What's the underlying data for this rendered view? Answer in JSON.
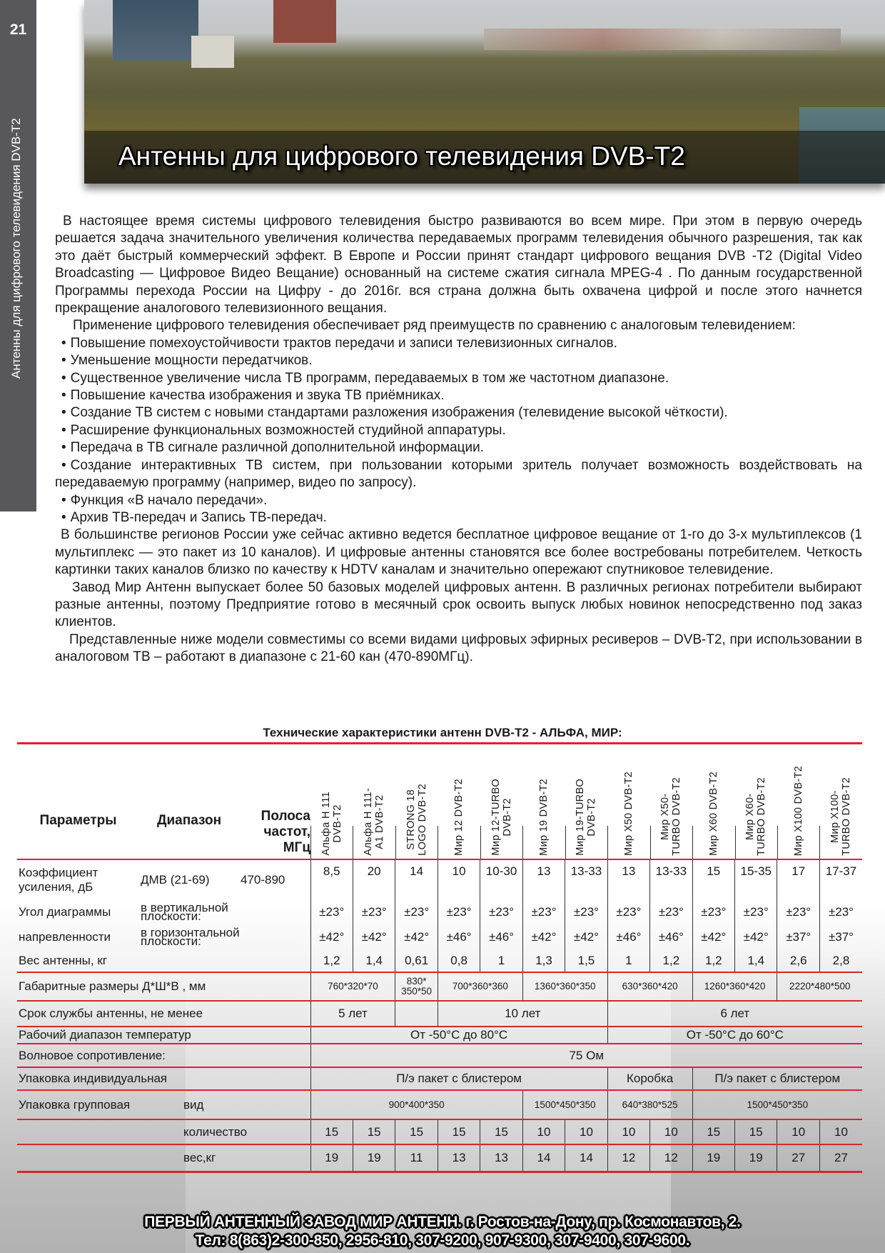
{
  "sidebar": {
    "page_number": "21",
    "section_title": "Антенны для цифрового телевидения DVB-T2"
  },
  "header": {
    "title": "Антенны для цифрового телевидения DVB-T2"
  },
  "body": {
    "intro": "В настоящее время системы цифрового телевидения быстро развиваются во всем мире. При этом в первую очередь решается задача значительного увеличения количества передаваемых программ телевидения обычного разрешения, так как это даёт быстрый коммерческий эффект. В Европе и России принят стандарт цифрового вещания  DVB -T2 (Digital Video Broadcasting — Цифровое Видео Вещание) основанный на системе сжатия сигнала  MPEG-4 . По данным государственной Программы перехода России на Цифру - до 2016г. вся страна должна быть охвачена цифрой и после этого начнется прекращение аналогового телевизионного вещания.",
    "advantages_intro": "Применение цифрового телевидения обеспечивает ряд преимуществ по сравнению с аналоговым телевидением:",
    "bullets": [
      "Повышение помехоустойчивости трактов передачи и записи телевизионных сигналов.",
      "Уменьшение мощности передатчиков.",
      "Существенное увеличение числа ТВ программ, передаваемых в том же частотном диапазоне.",
      "Повышение качества изображения и звука ТВ приёмниках.",
      "Создание ТВ систем с новыми стандартами разложения изображения (телевидение высокой чёткости).",
      "Расширение функциональных возможностей студийной аппаратуры.",
      "Передача в ТВ сигнале различной дополнительной информации.",
      "Создание интерактивных ТВ систем, при пользовании которыми зритель получает возможность воздействовать на передаваемую программу (например, видео по запросу).",
      "Функция «В начало передачи».",
      "Архив ТВ-передач и Запись ТВ-передач."
    ],
    "regions": "В большинстве регионов России уже сейчас активно ведется бесплатное цифровое вещание от 1-го до 3-х мультиплексов (1 мультиплекс — это пакет из 10 каналов). И цифровые антенны становятся все более востребованы потребителем. Четкость картинки таких каналов близко по качеству к HDTV каналам и значительно опережают спутниковое телевидение.",
    "factory": "Завод Мир Антенн выпускает более 50 базовых моделей цифровых антенн. В различных регионах потребители выбирают разные антенны, поэтому Предприятие готово в месячный срок освоить выпуск любых новинок непосредственно под заказ клиентов.",
    "compat": "Представленные ниже модели совместимы со всеми видами цифровых эфирных ресиверов – DVB-T2, при использовании в аналоговом ТВ – работают в диапазоне с 21-60 кан (470-890МГц)."
  },
  "table": {
    "title": "Технические характеристики антенн DVB-T2 - АЛЬФА, МИР:",
    "headers": {
      "params": "Параметры",
      "range": "Диапазон",
      "band": "Полоса частот, МГц"
    },
    "models": [
      [
        "Альфа H 111",
        "DVB-T2"
      ],
      [
        "Альфа H 111-",
        "A1 DVB-T2"
      ],
      [
        "STRONG 18",
        "LOGO DVB-T2"
      ],
      [
        "Мир 12 DVB-T2"
      ],
      [
        "Мир 12-TURBO",
        "DVB-T2"
      ],
      [
        "Мир 19 DVB-T2"
      ],
      [
        "Мир 19-TURBO",
        "DVB-T2"
      ],
      [
        "Мир X50 DVB-T2"
      ],
      [
        "Мир X50-",
        "TURBO DVB-T2"
      ],
      [
        "Мир X60 DVB-T2"
      ],
      [
        "Мир X60-",
        "TURBO DVB-T2"
      ],
      [
        "Мир X100 DVB-T2"
      ],
      [
        "Мир X100-",
        "TURBO DVB-T2"
      ]
    ],
    "gain": {
      "label": "Коэффициент усиления, дБ",
      "range": "ДМВ (21-69)",
      "band": "470-890",
      "values": [
        "8,5",
        "20",
        "14",
        "10",
        "10-30",
        "13",
        "13-33",
        "13",
        "13-33",
        "15",
        "15-35",
        "17",
        "17-37"
      ]
    },
    "angle": {
      "label_1": "Угол диаграммы",
      "label_2": "напревленности",
      "vertical_label": "в вертикальной плоскости:",
      "horizontal_label": "в горизонтальной плоскости:",
      "vertical": [
        "±23°",
        "±23°",
        "±23°",
        "±23°",
        "±23°",
        "±23°",
        "±23°",
        "±23°",
        "±23°",
        "±23°",
        "±23°",
        "±23°",
        "±23°"
      ],
      "horizontal": [
        "±42°",
        "±42°",
        "±42°",
        "±46°",
        "±46°",
        "±42°",
        "±42°",
        "±46°",
        "±46°",
        "±42°",
        "±42°",
        "±37°",
        "±37°"
      ]
    },
    "weight": {
      "label": "Вес антенны, кг",
      "values": [
        "1,2",
        "1,4",
        "0,61",
        "0,8",
        "1",
        "1,3",
        "1,5",
        "1",
        "1,2",
        "1,2",
        "1,4",
        "2,6",
        "2,8"
      ]
    },
    "merged_rows": [
      {
        "label": "Габаритные размеры Д*Ш*В , мм",
        "cells": [
          {
            "v": "760*320*70",
            "span": 2
          },
          {
            "v": "830* 350*50",
            "span": 1
          },
          {
            "v": "700*360*360",
            "span": 2
          },
          {
            "v": "1360*360*350",
            "span": 2
          },
          {
            "v": "630*360*420",
            "span": 2
          },
          {
            "v": "1260*360*420",
            "span": 2
          },
          {
            "v": "2220*480*500",
            "span": 2
          }
        ]
      },
      {
        "label": "Срок службы антенны, не менее",
        "cells": [
          {
            "v": "5 лет",
            "span": 2
          },
          {
            "v": "",
            "span": 1
          },
          {
            "v": "10 лет",
            "span": 4
          },
          {
            "v": "6 лет",
            "span": 6
          }
        ]
      },
      {
        "label": "Рабочий диапазон температур",
        "cells": [
          {
            "v": "От -50°С до 80°С",
            "span": 7
          },
          {
            "v": "От -50°С до 60°С",
            "span": 6
          }
        ]
      },
      {
        "label": "Волновое сопротивление:",
        "cells": [
          {
            "v": "75 Ом",
            "span": 13
          }
        ]
      },
      {
        "label": "Упаковка индивидуальная",
        "cells": [
          {
            "v": "П/э пакет с блистером",
            "span": 7
          },
          {
            "v": "Коробка",
            "span": 2
          },
          {
            "v": "П/э пакет с блистером",
            "span": 4
          }
        ]
      }
    ],
    "group_pack": {
      "label": "Упаковка групповая",
      "type_label": "вид",
      "type_cells": [
        {
          "v": "900*400*350",
          "span": 5
        },
        {
          "v": "1500*450*350",
          "span": 2
        },
        {
          "v": "640*380*525",
          "span": 2
        },
        {
          "v": "1500*450*350",
          "span": 4
        }
      ],
      "qty_label": "количество",
      "qty": [
        "15",
        "15",
        "15",
        "15",
        "15",
        "10",
        "10",
        "10",
        "10",
        "15",
        "15",
        "10",
        "10"
      ],
      "weight_label": "вес,кг",
      "weight": [
        "19",
        "19",
        "11",
        "13",
        "13",
        "14",
        "14",
        "12",
        "12",
        "19",
        "19",
        "27",
        "27"
      ]
    }
  },
  "footer": {
    "line1": "ПЕРВЫЙ АНТЕННЫЙ ЗАВОД МИР АНТЕНН. г. Ростов-на-Дону, пр. Космонавтов, 2.",
    "line2": "Тел: 8(863)2-300-850, 2956-810, 307-9200, 907-9300, 307-9400, 307-9600."
  },
  "colors": {
    "accent_red": "#d8262c",
    "sidebar_gray": "#58585a"
  }
}
